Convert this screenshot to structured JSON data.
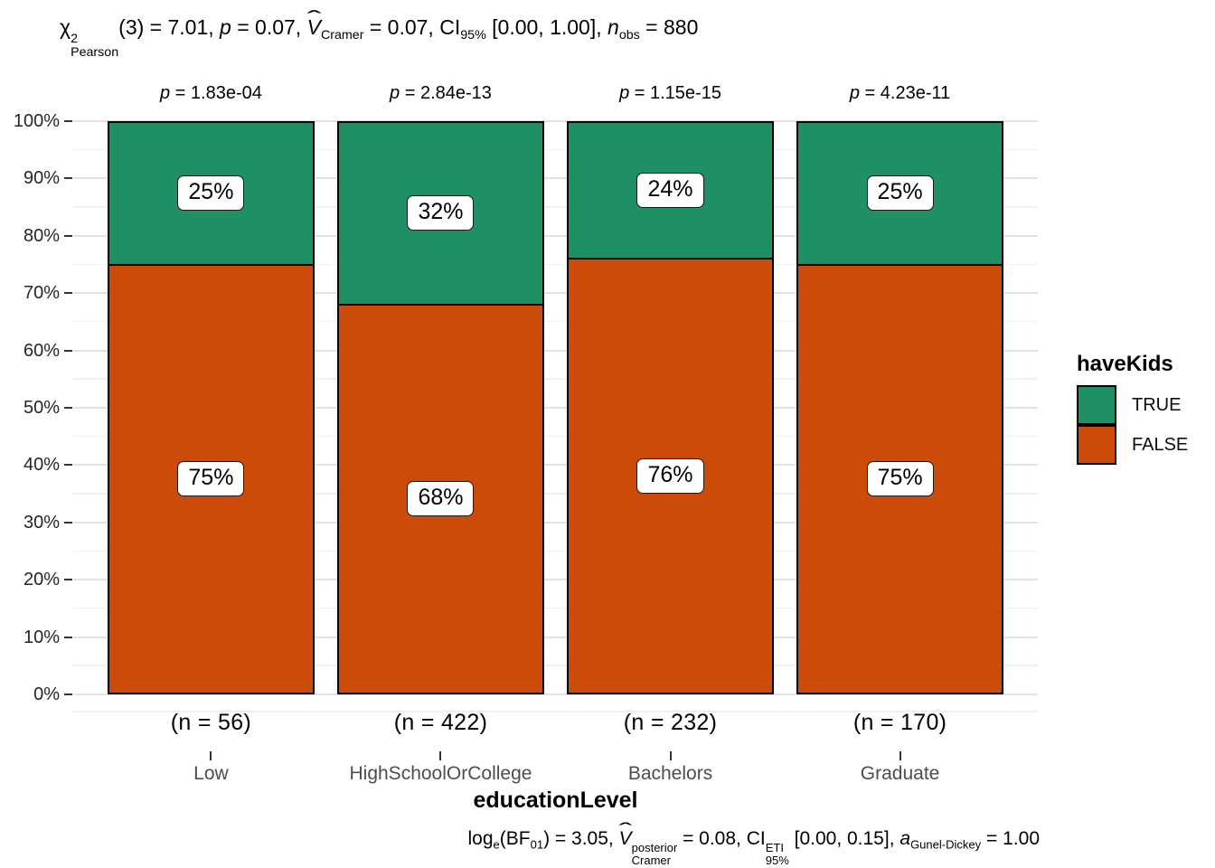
{
  "colors": {
    "true_fill": "#1F9063",
    "false_fill": "#CC4B08",
    "grid_major": "#E2E2E2",
    "grid_minor": "#EFEFEF",
    "bar_border": "#000000",
    "axis_tick": "#333333",
    "y_tick_label": "#262626",
    "x_tick_label": "#4D4D4D",
    "text": "#000000"
  },
  "stats_title_segments": [
    {
      "t": "χ"
    },
    {
      "stack": {
        "sup": "2",
        "sub": "Pearson"
      }
    },
    {
      "t": "(3) = 7.01, "
    },
    {
      "t": "p",
      "i": true
    },
    {
      "t": " = 0.07, "
    },
    {
      "t": "V",
      "i": true,
      "hat": true
    },
    {
      "sub": "Cramer"
    },
    {
      "t": " = 0.07, CI"
    },
    {
      "sub": "95%"
    },
    {
      "t": " [0.00, 1.00], "
    },
    {
      "t": "n",
      "i": true
    },
    {
      "sub": "obs"
    },
    {
      "t": " = 880"
    }
  ],
  "stats_caption_segments": [
    {
      "t": "log"
    },
    {
      "sub": "e"
    },
    {
      "t": "(BF"
    },
    {
      "sub": "01"
    },
    {
      "t": ") = 3.05, "
    },
    {
      "t": "V",
      "i": true,
      "hat": true
    },
    {
      "stack": {
        "sup": "posterior",
        "sub": "Cramer"
      }
    },
    {
      "t": " = 0.08, CI"
    },
    {
      "stack": {
        "sup": "ETI",
        "sub": "95%"
      }
    },
    {
      "t": " [0.00, 0.15], "
    },
    {
      "t": "a",
      "i": true
    },
    {
      "sub": "Gunel-Dickey"
    },
    {
      "t": " = 1.00"
    }
  ],
  "legend": {
    "title": "haveKids",
    "entries": [
      {
        "label": "TRUE",
        "color": "#1F9063"
      },
      {
        "label": "FALSE",
        "color": "#CC4B08"
      }
    ]
  },
  "chart_data": {
    "type": "bar",
    "subtype": "100%-stacked-vertical",
    "categories": [
      "Low",
      "HighSchoolOrCollege",
      "Bachelors",
      "Graduate"
    ],
    "series": [
      {
        "name": "TRUE",
        "values": [
          25,
          32,
          24,
          25
        ],
        "color": "#1F9063"
      },
      {
        "name": "FALSE",
        "values": [
          75,
          68,
          76,
          75
        ],
        "color": "#CC4B08"
      }
    ],
    "value_unit": "percent",
    "bar_value_labels": [
      [
        "25%",
        "75%"
      ],
      [
        "32%",
        "68%"
      ],
      [
        "24%",
        "76%"
      ],
      [
        "25%",
        "75%"
      ]
    ],
    "sample_size_labels": [
      "(n = 56)",
      "(n = 422)",
      "(n = 232)",
      "(n = 170)"
    ],
    "p_value_labels": [
      "p = 1.83e-04",
      "p = 2.84e-13",
      "p = 1.15e-15",
      "p = 4.23e-11"
    ],
    "xlabel": "educationLevel",
    "ylabel": "",
    "ylim": [
      0,
      100
    ],
    "y_tick_labels": [
      "0%",
      "10%",
      "20%",
      "30%",
      "40%",
      "50%",
      "60%",
      "70%",
      "80%",
      "90%",
      "100%"
    ],
    "grid": "major+minor",
    "legend_title": "haveKids",
    "legend_position": "right",
    "title": "chi^2_Pearson(3) = 7.01, p = 0.07, V-hat_Cramer = 0.07, CI_95% [0.00, 1.00], n_obs = 880",
    "caption": "log_e(BF_01) = 3.05, V-hat_Cramer^posterior = 0.08, CI_95%^ETI [0.00, 0.15], a_Gunel-Dickey = 1.00"
  }
}
